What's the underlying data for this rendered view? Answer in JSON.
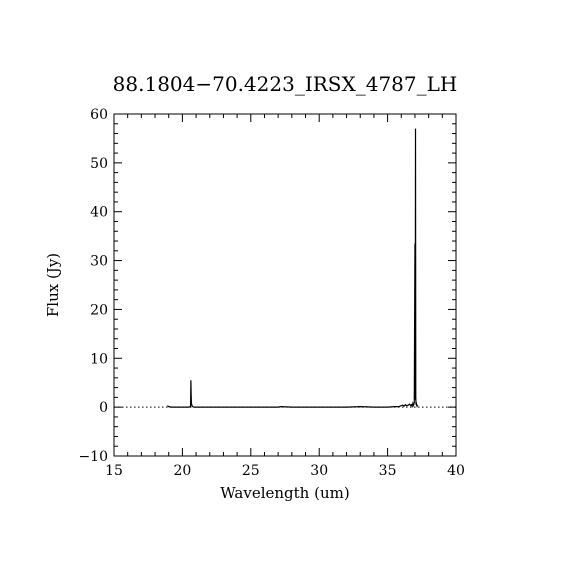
{
  "chart_data": {
    "type": "line",
    "title": "88.1804−70.4223_IRSX_4787_LH",
    "xlabel": "Wavelength (um)",
    "ylabel": "Flux (Jy)",
    "xlim": [
      15,
      40
    ],
    "ylim": [
      -10,
      60
    ],
    "x_ticks": [
      15,
      20,
      25,
      30,
      35,
      40
    ],
    "x_tick_labels": [
      "15",
      "20",
      "25",
      "30",
      "35",
      "40"
    ],
    "y_ticks": [
      -10,
      0,
      10,
      20,
      30,
      40,
      50,
      60
    ],
    "y_tick_labels": [
      "−10",
      "0",
      "10",
      "20",
      "30",
      "40",
      "50",
      "60"
    ],
    "x_minor_step": 1,
    "y_minor_step": 2,
    "zero_reference_line": true,
    "grid": false,
    "series": [
      {
        "x": [
          18.9,
          19.0,
          19.2,
          19.5,
          20.0,
          20.5,
          20.6,
          20.62,
          20.64,
          20.66,
          20.7,
          20.75,
          20.85,
          21.0,
          22.0,
          24.0,
          26.0,
          27.0,
          27.2,
          28.0,
          30.0,
          32.0,
          33.0,
          34.0,
          35.0,
          35.5,
          35.8,
          35.9,
          36.0,
          36.1,
          36.2,
          36.3,
          36.4,
          36.5,
          36.6,
          36.7,
          36.75,
          36.8,
          36.85,
          36.9,
          36.95,
          37.0,
          37.02,
          37.04,
          37.06,
          37.08,
          37.1,
          37.12,
          37.14,
          37.16,
          37.18,
          37.2
        ],
        "y": [
          0.3,
          0.1,
          0.0,
          0.0,
          0.0,
          0.0,
          0.2,
          5.5,
          2.5,
          0.8,
          0.3,
          0.1,
          0.0,
          0.0,
          0.0,
          0.0,
          0.0,
          0.0,
          0.1,
          0.0,
          0.0,
          0.0,
          0.1,
          0.0,
          0.0,
          0.1,
          0.1,
          0.2,
          0.3,
          0.4,
          0.2,
          0.5,
          0.3,
          0.4,
          0.6,
          0.3,
          0.5,
          0.2,
          0.8,
          0.4,
          1.0,
          33.5,
          1.5,
          57.0,
          2.0,
          0.5,
          1.0,
          0.3,
          0.5,
          0.2,
          0.3,
          0.2
        ]
      }
    ]
  }
}
